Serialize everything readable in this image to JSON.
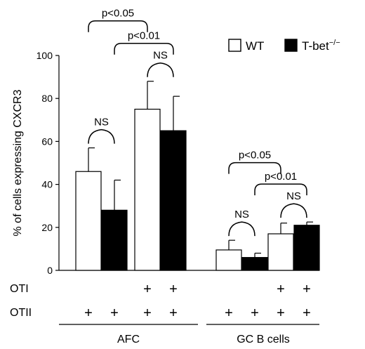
{
  "chart_data": {
    "type": "bar",
    "ylabel": "% of cells expressing CXCR3",
    "ylim": [
      0,
      100
    ],
    "yticks": [
      0,
      20,
      40,
      60,
      80,
      100
    ],
    "grid": false,
    "legend_position": "top-right",
    "legend": [
      {
        "name": "WT",
        "color": "#ffffff"
      },
      {
        "name": "T-bet",
        "sup": "−/−",
        "color": "#000000"
      }
    ],
    "groups": [
      "AFC",
      "GC B cells"
    ],
    "conditions": [
      {
        "OTI": "",
        "OTII": "+"
      },
      {
        "OTI": "+",
        "OTII": "+"
      }
    ],
    "row_labels": {
      "OTI": "OTI",
      "OTII": "OTII"
    },
    "marker": "+",
    "bars": [
      {
        "group": "AFC",
        "condition": 0,
        "series": "WT",
        "value": 46,
        "error": 11
      },
      {
        "group": "AFC",
        "condition": 0,
        "series": "T-bet−/−",
        "value": 28,
        "error": 14
      },
      {
        "group": "AFC",
        "condition": 1,
        "series": "WT",
        "value": 75,
        "error": 13
      },
      {
        "group": "AFC",
        "condition": 1,
        "series": "T-bet−/−",
        "value": 65,
        "error": 16
      },
      {
        "group": "GC B cells",
        "condition": 0,
        "series": "WT",
        "value": 9.5,
        "error": 4.5
      },
      {
        "group": "GC B cells",
        "condition": 0,
        "series": "T-bet−/−",
        "value": 6,
        "error": 2
      },
      {
        "group": "GC B cells",
        "condition": 1,
        "series": "WT",
        "value": 17,
        "error": 5
      },
      {
        "group": "GC B cells",
        "condition": 1,
        "series": "T-bet−/−",
        "value": 21,
        "error": 1.5
      }
    ],
    "annotations": [
      {
        "type": "bracket",
        "from_bar": 0,
        "to_bar": 1,
        "label": "NS"
      },
      {
        "type": "bracket",
        "from_bar": 2,
        "to_bar": 3,
        "label": "NS"
      },
      {
        "type": "bracket",
        "from_bar": 1,
        "to_bar": 3,
        "label": "p<0.01"
      },
      {
        "type": "bracket",
        "from_bar": 0,
        "to_bar": 2,
        "label": "p<0.05"
      },
      {
        "type": "bracket",
        "from_bar": 4,
        "to_bar": 5,
        "label": "NS"
      },
      {
        "type": "bracket",
        "from_bar": 6,
        "to_bar": 7,
        "label": "NS"
      },
      {
        "type": "bracket",
        "from_bar": 5,
        "to_bar": 7,
        "label": "p<0.01"
      },
      {
        "type": "bracket",
        "from_bar": 4,
        "to_bar": 6,
        "label": "p<0.05"
      }
    ]
  }
}
